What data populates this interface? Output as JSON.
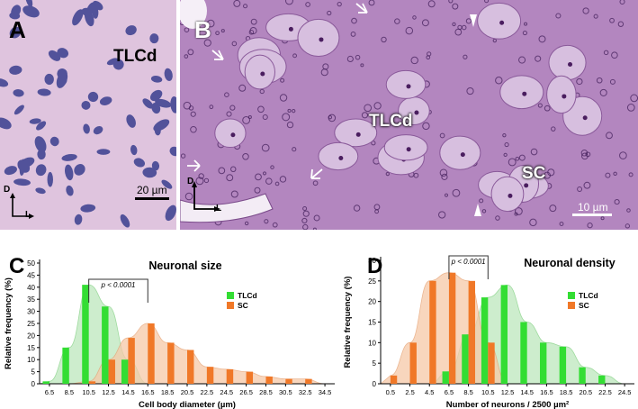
{
  "panels": {
    "a": {
      "letter": "A",
      "region_label": "TLCd",
      "scale_bar": "20 µm",
      "axis_d": "D",
      "axis_l": "L"
    },
    "b": {
      "letter": "B",
      "region_label": "TLCd",
      "region_label_2": "SC",
      "scale_bar": "10 µm",
      "axis_d": "D",
      "axis_l": "L"
    },
    "c": {
      "letter": "C"
    },
    "d": {
      "letter": "D"
    }
  },
  "colors": {
    "tlcd": "#33dd33",
    "sc": "#f07828",
    "tlcd_fill": "#bde8bd",
    "sc_fill": "#f6c9a8",
    "tissue_a_bg": "#d9b9d9",
    "tissue_b_bg": "#b47fbf"
  },
  "chart_data": [
    {
      "type": "bar",
      "title": "Neuronal size",
      "xlabel": "Cell body diameter (µm)",
      "ylabel": "Relative frequency (%)",
      "ylim": [
        0,
        50
      ],
      "yticks": [
        "0",
        "5",
        "10",
        "15",
        "20",
        "25",
        "30",
        "35",
        "40",
        "45",
        "50"
      ],
      "categories": [
        "6.5",
        "8.5",
        "10.5",
        "12.5",
        "14.5",
        "16.5",
        "18.5",
        "20.5",
        "22.5",
        "24.5",
        "26.5",
        "28.5",
        "30.5",
        "32.5",
        "34.5"
      ],
      "annotation": "p < 0.0001",
      "legend_position": "top-right",
      "series": [
        {
          "name": "TLCd",
          "values": [
            1,
            15,
            41,
            32,
            10,
            0,
            0,
            0,
            0,
            0,
            0,
            0,
            0,
            0,
            0
          ]
        },
        {
          "name": "SC",
          "values": [
            0,
            0,
            1,
            10,
            19,
            25,
            17,
            14,
            7,
            6,
            5,
            3,
            2,
            2,
            0
          ]
        }
      ]
    },
    {
      "type": "bar",
      "title": "Neuronal density",
      "xlabel": "Number of neurons / 2500 µm²",
      "ylabel": "Relative frequency (%)",
      "ylim": [
        0,
        30
      ],
      "yticks": [
        "0",
        "5",
        "10",
        "15",
        "20",
        "25",
        "30"
      ],
      "categories": [
        "0.5",
        "2.5",
        "4.5",
        "6.5",
        "8.5",
        "10.5",
        "12.5",
        "14.5",
        "16.5",
        "18.5",
        "20.5",
        "22.5",
        "24.5"
      ],
      "annotation": "p < 0.0001",
      "legend_position": "top-right",
      "series": [
        {
          "name": "TLCd",
          "values": [
            0,
            0,
            0,
            3,
            12,
            21,
            24,
            15,
            10,
            9,
            4,
            2,
            0
          ]
        },
        {
          "name": "SC",
          "values": [
            2,
            10,
            25,
            27,
            25,
            10,
            0,
            0,
            0,
            0,
            0,
            0,
            0
          ]
        }
      ]
    }
  ]
}
